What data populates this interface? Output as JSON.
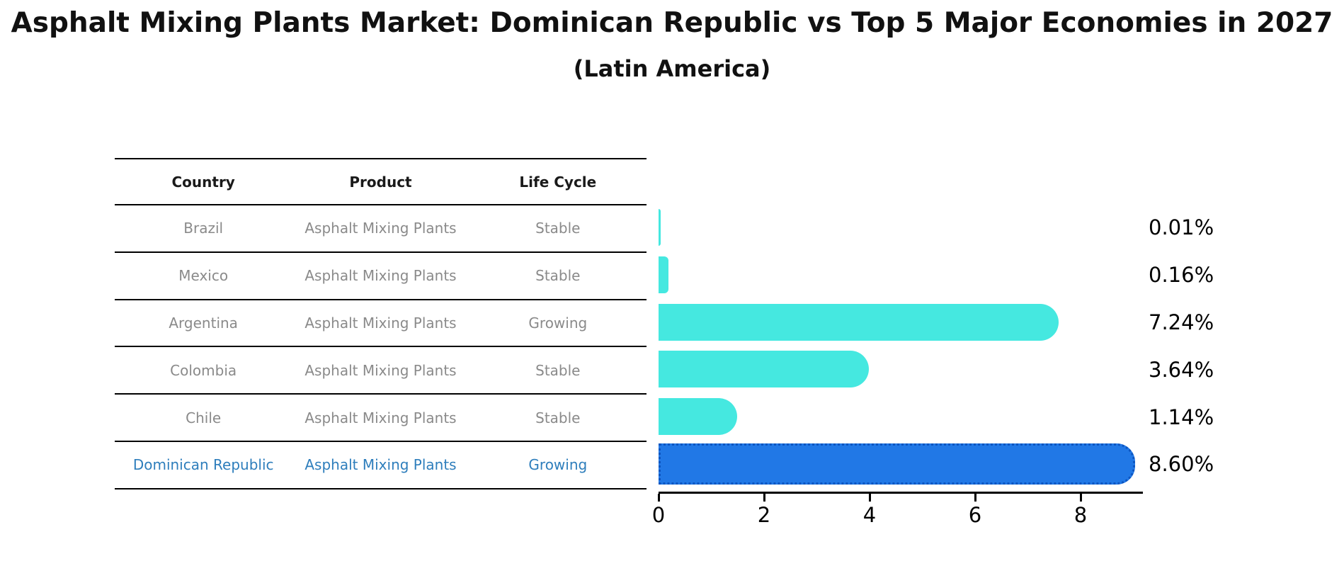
{
  "title": "Asphalt Mixing Plants Market: Dominican Republic vs Top 5 Major Economies in 2027",
  "subtitle": "(Latin America)",
  "table": {
    "headers": [
      "Country",
      "Product",
      "Life Cycle"
    ],
    "rows": [
      {
        "country": "Brazil",
        "product": "Asphalt Mixing Plants",
        "life_cycle": "Stable",
        "highlight": false
      },
      {
        "country": "Mexico",
        "product": "Asphalt Mixing Plants",
        "life_cycle": "Stable",
        "highlight": false
      },
      {
        "country": "Argentina",
        "product": "Asphalt Mixing Plants",
        "life_cycle": "Growing",
        "highlight": false
      },
      {
        "country": "Colombia",
        "product": "Asphalt Mixing Plants",
        "life_cycle": "Stable",
        "highlight": false
      },
      {
        "country": "Chile",
        "product": "Asphalt Mixing Plants",
        "life_cycle": "Stable",
        "highlight": false
      },
      {
        "country": "Dominican Republic",
        "product": "Asphalt Mixing Plants",
        "life_cycle": "Growing",
        "highlight": true
      }
    ]
  },
  "chart_data": {
    "type": "bar",
    "orientation": "horizontal",
    "title": "Asphalt Mixing Plants Market: Dominican Republic vs Top 5 Major Economies in 2027",
    "subtitle": "(Latin America)",
    "categories": [
      "Brazil",
      "Mexico",
      "Argentina",
      "Colombia",
      "Chile",
      "Dominican Republic"
    ],
    "values": [
      0.01,
      0.16,
      7.24,
      3.64,
      1.14,
      8.6
    ],
    "value_labels": [
      "0.01%",
      "0.16%",
      "7.24%",
      "3.64%",
      "1.14%",
      "8.60%"
    ],
    "xlim": [
      0,
      9.2
    ],
    "xticks": [
      0,
      2,
      4,
      6,
      8
    ],
    "grid": false,
    "legend": false,
    "highlight_index": 5,
    "bar_color": "#45e8e0",
    "highlight_color": "#2178e6",
    "highlight_edge_color": "#0d55c0"
  },
  "colors": {
    "background": "#ffffff",
    "table_line": "#000000",
    "table_text": "#8a8a8a",
    "table_header_text": "#1a1a1a",
    "highlight_text": "#2e7ebc",
    "axis": "#000000"
  }
}
